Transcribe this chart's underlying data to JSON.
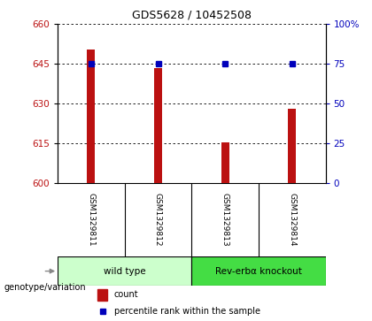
{
  "title": "GDS5628 / 10452508",
  "samples": [
    "GSM1329811",
    "GSM1329812",
    "GSM1329813",
    "GSM1329814"
  ],
  "bar_values": [
    650.5,
    643.5,
    615.5,
    628.0
  ],
  "percentile_values": [
    75,
    75,
    75,
    75
  ],
  "ylim_left": [
    600,
    660
  ],
  "ylim_right": [
    0,
    100
  ],
  "yticks_left": [
    600,
    615,
    630,
    645,
    660
  ],
  "yticks_right": [
    0,
    25,
    50,
    75,
    100
  ],
  "ytick_labels_right": [
    "0",
    "25",
    "50",
    "75",
    "100%"
  ],
  "bar_color": "#bb1111",
  "dot_color": "#0000bb",
  "groups": [
    {
      "label": "wild type",
      "samples": [
        0,
        1
      ],
      "color": "#ccffcc"
    },
    {
      "label": "Rev-erbα knockout",
      "samples": [
        2,
        3
      ],
      "color": "#44dd44"
    }
  ],
  "group_row_label": "genotype/variation",
  "legend_count_label": "count",
  "legend_percentile_label": "percentile rank within the sample",
  "bar_width": 0.12,
  "background_color": "#ffffff",
  "sample_row_color": "#cccccc",
  "title_fontsize": 9
}
